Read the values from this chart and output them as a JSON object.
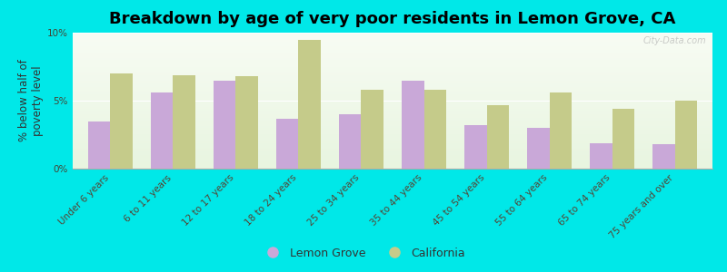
{
  "title": "Breakdown by age of very poor residents in Lemon Grove, CA",
  "ylabel": "% below half of\npoverty level",
  "categories": [
    "Under 6 years",
    "6 to 11 years",
    "12 to 17 years",
    "18 to 24 years",
    "25 to 34 years",
    "35 to 44 years",
    "45 to 54 years",
    "55 to 64 years",
    "65 to 74 years",
    "75 years and over"
  ],
  "lemon_grove": [
    3.5,
    5.6,
    6.5,
    3.7,
    4.0,
    6.5,
    3.2,
    3.0,
    1.9,
    1.8
  ],
  "california": [
    7.0,
    6.9,
    6.8,
    9.5,
    5.8,
    5.8,
    4.7,
    5.6,
    4.4,
    5.0
  ],
  "bar_color_lg": "#c9a8d8",
  "bar_color_ca": "#c5cb8a",
  "bg_outer": "#00e8e8",
  "bg_grad_top": "#f0f8ee",
  "bg_grad_bottom": "#e8f5e0",
  "ylim": [
    0,
    10
  ],
  "yticks": [
    0,
    5,
    10
  ],
  "ytick_labels": [
    "0%",
    "5%",
    "10%"
  ],
  "legend_lemon_grove": "Lemon Grove",
  "legend_california": "California",
  "bar_width": 0.35,
  "title_fontsize": 13,
  "axis_label_fontsize": 8.5,
  "tick_fontsize": 7.5,
  "legend_fontsize": 9,
  "n_categories": 10
}
